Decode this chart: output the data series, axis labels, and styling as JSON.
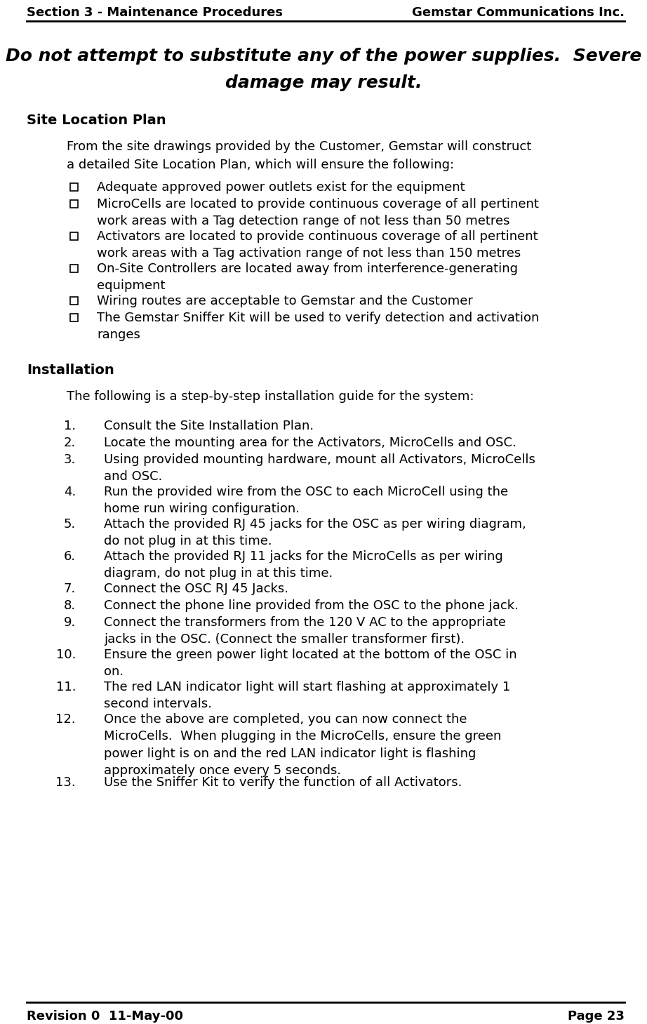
{
  "header_left": "Section 3 - Maintenance Procedures",
  "header_right": "Gemstar Communications Inc.",
  "footer_left": "Revision 0  11-May-00",
  "footer_right": "Page 23",
  "warning_line1": "Do not attempt to substitute any of the power supplies.  Severe",
  "warning_line2": "damage may result.",
  "section1_title": "Site Location Plan",
  "section1_intro": "From the site drawings provided by the Customer, Gemstar will construct\na detailed Site Location Plan, which will ensure the following:",
  "bullets": [
    "Adequate approved power outlets exist for the equipment",
    "MicroCells are located to provide continuous coverage of all pertinent\nwork areas with a Tag detection range of not less than 50 metres",
    "Activators are located to provide continuous coverage of all pertinent\nwork areas with a Tag activation range of not less than 150 metres",
    "On-Site Controllers are located away from interference-generating\nequipment",
    "Wiring routes are acceptable to Gemstar and the Customer",
    "The Gemstar Sniffer Kit will be used to verify detection and activation\nranges"
  ],
  "section2_title": "Installation",
  "section2_intro": "The following is a step-by-step installation guide for the system:",
  "steps": [
    "Consult the Site Installation Plan.",
    "Locate the mounting area for the Activators, MicroCells and OSC.",
    "Using provided mounting hardware, mount all Activators, MicroCells\nand OSC.",
    "Run the provided wire from the OSC to each MicroCell using the\nhome run wiring configuration.",
    "Attach the provided RJ 45 jacks for the OSC as per wiring diagram,\ndo not plug in at this time.",
    "Attach the provided RJ 11 jacks for the MicroCells as per wiring\ndiagram, do not plug in at this time.",
    "Connect the OSC RJ 45 Jacks.",
    "Connect the phone line provided from the OSC to the phone jack.",
    "Connect the transformers from the 120 V AC to the appropriate\njacks in the OSC. (Connect the smaller transformer first).",
    "Ensure the green power light located at the bottom of the OSC in\non.",
    "The red LAN indicator light will start flashing at approximately 1\nsecond intervals.",
    "Once the above are completed, you can now connect the\nMicroCells.  When plugging in the MicroCells, ensure the green\npower light is on and the red LAN indicator light is flashing\napproximately once every 5 seconds.",
    "Use the Sniffer Kit to verify the function of all Activators."
  ],
  "bg_color": "#ffffff",
  "text_color": "#000000",
  "header_fontsize": 13,
  "body_fontsize": 13,
  "title_fontsize": 14,
  "warning_fontsize": 18
}
